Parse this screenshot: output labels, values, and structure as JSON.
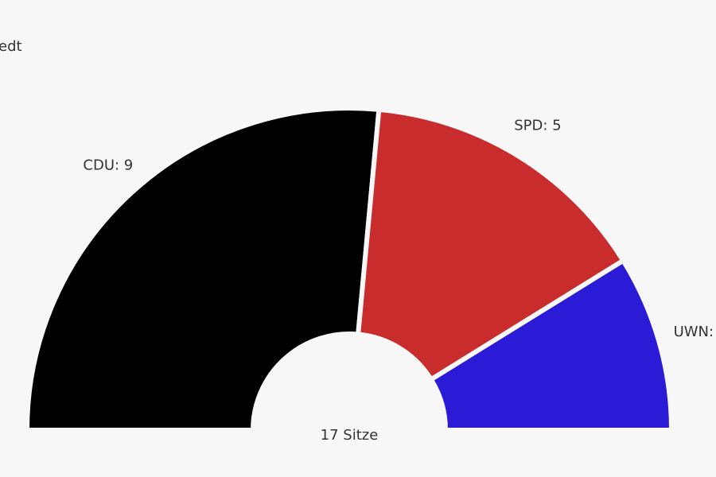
{
  "chart_data": {
    "type": "parliament",
    "title": "edt",
    "values": [
      9,
      5,
      3
    ],
    "value_labels": [
      "CDU: 9",
      "SPD: 5",
      "UWN:"
    ],
    "colors": [
      "#000000",
      "#c92c2c",
      "#2b1ad6"
    ],
    "center_label": "17 Sitze"
  }
}
